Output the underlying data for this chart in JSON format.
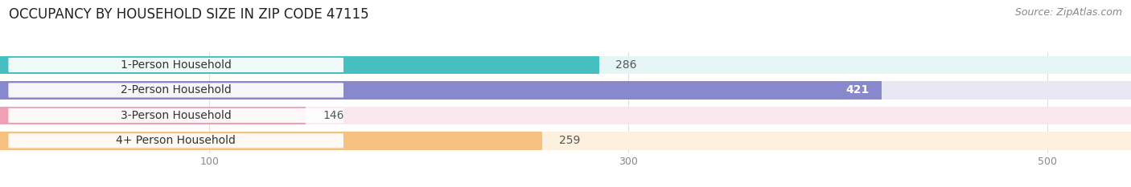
{
  "title": "OCCUPANCY BY HOUSEHOLD SIZE IN ZIP CODE 47115",
  "source": "Source: ZipAtlas.com",
  "categories": [
    "1-Person Household",
    "2-Person Household",
    "3-Person Household",
    "4+ Person Household"
  ],
  "values": [
    286,
    421,
    146,
    259
  ],
  "bar_colors": [
    "#45BFBF",
    "#8888CC",
    "#F0A0B5",
    "#F5C080"
  ],
  "background_colors": [
    "#E5F5F5",
    "#E8E8F5",
    "#FAE8EE",
    "#FDF0DF"
  ],
  "value_text_colors": [
    "#444444",
    "#FFFFFF",
    "#444444",
    "#444444"
  ],
  "value_inside": [
    false,
    true,
    false,
    false
  ],
  "xlim_max": 540,
  "xticks": [
    100,
    300,
    500
  ],
  "title_fontsize": 12,
  "label_fontsize": 10,
  "value_fontsize": 10,
  "source_fontsize": 9,
  "background_color": "#FFFFFF",
  "grid_color": "#DDDDDD",
  "tick_color": "#888888"
}
